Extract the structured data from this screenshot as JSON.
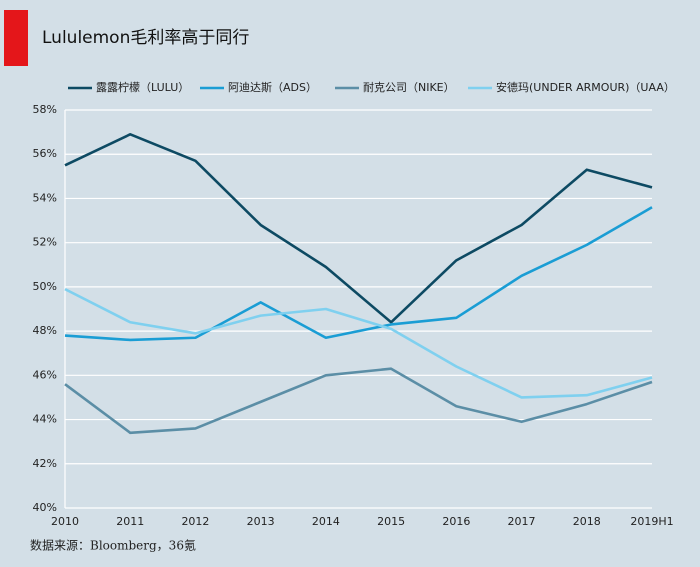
{
  "chart_data": {
    "type": "line",
    "title": "Lululemon毛利率高于同行",
    "source": "数据来源：Bloomberg，36氪",
    "categories": [
      "2010",
      "2011",
      "2012",
      "2013",
      "2014",
      "2015",
      "2016",
      "2017",
      "2018",
      "2019H1"
    ],
    "series": [
      {
        "name": "露露柠檬（LULU）",
        "color": "#0d4a63",
        "values": [
          55.5,
          56.9,
          55.7,
          52.8,
          50.9,
          48.4,
          51.2,
          52.8,
          55.3,
          54.5
        ]
      },
      {
        "name": "阿迪达斯（ADS）",
        "color": "#1a9dd4",
        "values": [
          47.8,
          47.6,
          47.7,
          49.3,
          47.7,
          48.3,
          48.6,
          50.5,
          51.9,
          53.6
        ]
      },
      {
        "name": "耐克公司（NIKE）",
        "color": "#5b8ea6",
        "values": [
          45.6,
          43.4,
          43.6,
          44.8,
          46.0,
          46.3,
          44.6,
          43.9,
          44.7,
          45.7
        ]
      },
      {
        "name": "安德玛(UNDER ARMOUR)（UAA）",
        "color": "#7fd0ef",
        "values": [
          49.9,
          48.4,
          47.9,
          48.7,
          49.0,
          48.1,
          46.4,
          45.0,
          45.1,
          45.9
        ]
      }
    ],
    "ylim": [
      40,
      58
    ],
    "yticks": [
      {
        "value": 40,
        "label": "40%"
      },
      {
        "value": 42,
        "label": "42%"
      },
      {
        "value": 44,
        "label": "44%"
      },
      {
        "value": 46,
        "label": "46%"
      },
      {
        "value": 48,
        "label": "48%"
      },
      {
        "value": 50,
        "label": "50%"
      },
      {
        "value": 52,
        "label": "52%"
      },
      {
        "value": 54,
        "label": "54%"
      },
      {
        "value": 56,
        "label": "56%"
      },
      {
        "value": 58,
        "label": "58%"
      }
    ],
    "grid": true
  }
}
